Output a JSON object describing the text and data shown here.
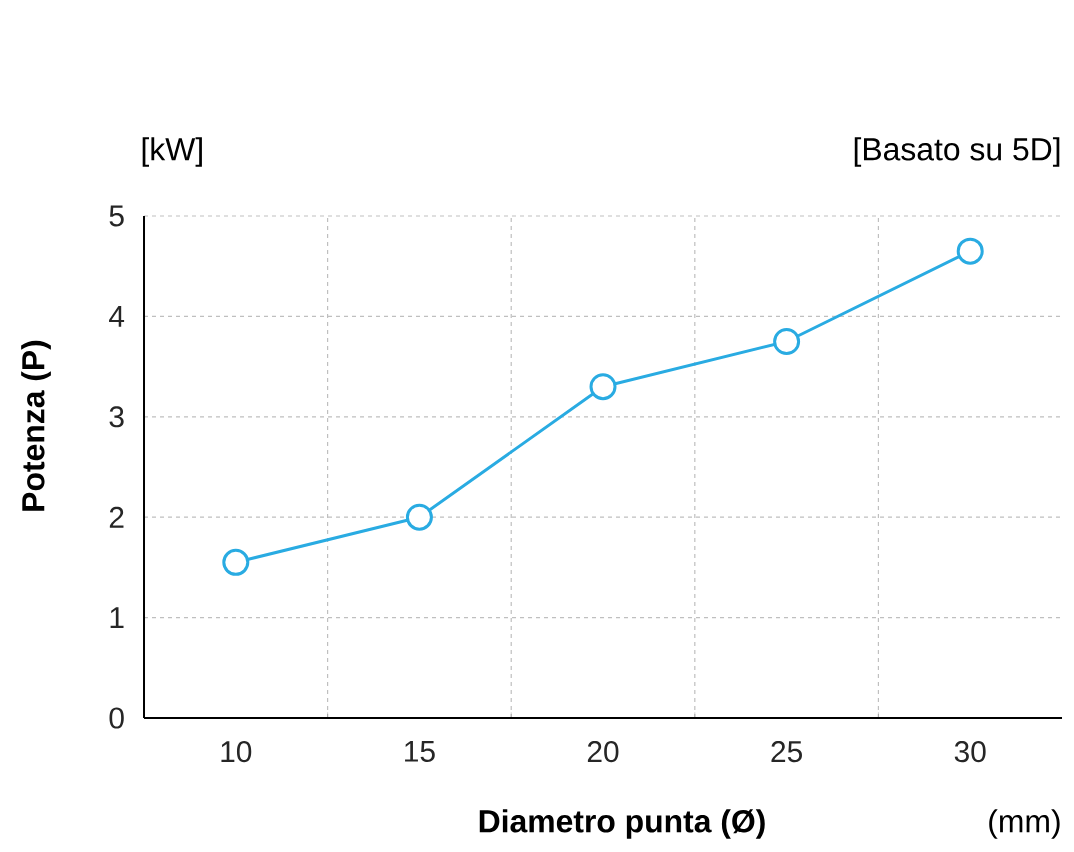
{
  "chart_data": {
    "type": "line",
    "xlabel": "Diametro punta (Ø)",
    "ylabel": "Potenza (P)",
    "annotations": [
      "[kW]",
      "[Basato su 5D]",
      "(mm)"
    ],
    "categories": [
      "10",
      "15",
      "20",
      "25",
      "30"
    ],
    "series": [
      {
        "color": "#29abe2",
        "values": [
          1.55,
          2.0,
          3.3,
          3.75,
          4.65
        ]
      }
    ],
    "ylim": [
      0,
      5
    ],
    "yticks": [
      0,
      1,
      2,
      3,
      4,
      5
    ],
    "grid": true,
    "marker": "circle",
    "line_style": "solid"
  }
}
